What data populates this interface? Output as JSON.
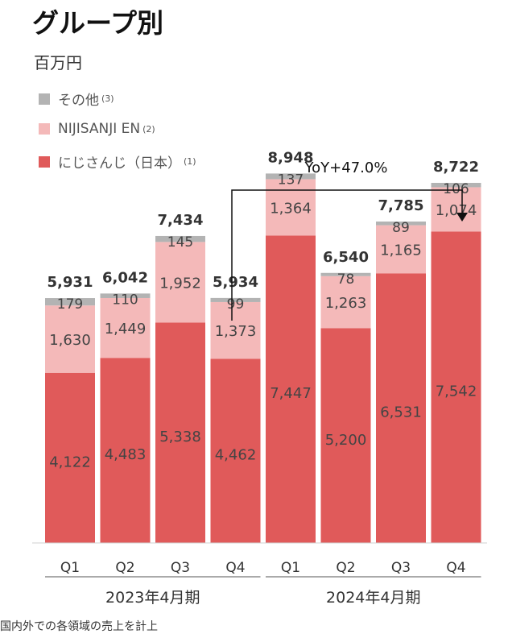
{
  "title": "グループ別",
  "unit": "百万円",
  "legend": [
    {
      "label": "その他",
      "note": "(3)",
      "color": "#b3b3b3"
    },
    {
      "label": "NIJISANJI EN",
      "note": "(2)",
      "color": "#f4b9b9"
    },
    {
      "label": "にじさんじ（日本）",
      "note": "(1)",
      "color": "#e05a5a"
    }
  ],
  "annotation": {
    "label": "YoY+47.0%"
  },
  "footnote": "国内外での各領域の売上を計上",
  "chart_data": {
    "type": "bar",
    "stacked": true,
    "categories": [
      "Q1",
      "Q2",
      "Q3",
      "Q4",
      "Q1",
      "Q2",
      "Q3",
      "Q4"
    ],
    "groups": [
      {
        "label": "2023年4月期"
      },
      {
        "label": "2024年4月期"
      }
    ],
    "series": [
      {
        "name": "にじさんじ（日本）",
        "color": "#e05a5a",
        "values": [
          4122,
          4483,
          5338,
          4462,
          7447,
          5200,
          6531,
          7542
        ]
      },
      {
        "name": "NIJISANJI EN",
        "color": "#f4b9b9",
        "values": [
          1630,
          1449,
          1952,
          1373,
          1364,
          1263,
          1165,
          1074
        ]
      },
      {
        "name": "その他",
        "color": "#b3b3b3",
        "values": [
          179,
          110,
          145,
          99,
          137,
          78,
          89,
          106
        ]
      }
    ],
    "totals": [
      5931,
      6042,
      7434,
      5934,
      8948,
      6540,
      7785,
      8722
    ],
    "ylim": [
      0,
      11200
    ]
  }
}
